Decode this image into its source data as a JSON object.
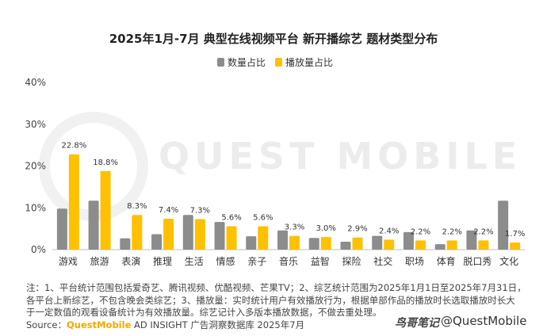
{
  "title": "2025年1月-7月 典型在线视频平台 新开播综艺 题材类型分布",
  "watermark": "QUEST MOBILE",
  "notes": {
    "line1": "注：1、平台统计范围包括爱奇艺、腾讯视频、优酷视频、芒果TV；2、综艺统计范围为2025年1月1日至2025年7月31日，",
    "line2": "各平台上新综艺，不包含晚会类综艺；3、播放量：实时统计用户有效播放行为，根据单部作品的播放时长选取播放时长大",
    "line3": "于一定数值的观看设备统计为有效播放量。综艺记计入多版本播放数据，不做去重处理。",
    "source_label": "Source：",
    "source_brand": "QuestMobile",
    "source_rest": " AD INSIGHT 广告洞察数据库 2025年7月"
  },
  "brand_logo": "鸟哥笔记",
  "brand_handle": "@QuestMobile",
  "colors": {
    "count": "#8c8c8c",
    "play": "#ffc000",
    "axis": "#bfbfbf",
    "grid": "#e6e6e6"
  },
  "chart_data": {
    "type": "bar",
    "title": "2025年1月-7月 典型在线视频平台 新开播综艺 题材类型分布",
    "categories": [
      "游戏",
      "旅游",
      "表演",
      "推理",
      "生活",
      "情感",
      "亲子",
      "音乐",
      "益智",
      "探险",
      "社交",
      "职场",
      "体育",
      "脱口秀",
      "文化"
    ],
    "series": [
      {
        "name": "数量占比",
        "values": [
          9.8,
          11.7,
          2.7,
          3.7,
          8.3,
          6.6,
          3.2,
          4.6,
          2.8,
          1.9,
          3.3,
          4.2,
          1.3,
          4.6,
          11.7
        ]
      },
      {
        "name": "播放量占比",
        "values": [
          22.8,
          18.8,
          8.3,
          7.4,
          7.3,
          5.6,
          5.6,
          3.3,
          3.0,
          2.9,
          2.4,
          2.2,
          2.2,
          2.2,
          1.7
        ]
      }
    ],
    "data_labels": [
      "22.8%",
      "18.8%",
      "8.3%",
      "7.4%",
      "7.3%",
      "5.6%",
      "5.6%",
      "3.3%",
      "3.0%",
      "2.9%",
      "2.4%",
      "2.2%",
      "2.2%",
      "2.2%",
      "1.7%"
    ],
    "y_ticks": [
      "0%",
      "10%",
      "20%",
      "30%",
      "40%"
    ],
    "ylim": [
      0,
      40
    ],
    "legend_position": "top-center",
    "grid": false
  }
}
